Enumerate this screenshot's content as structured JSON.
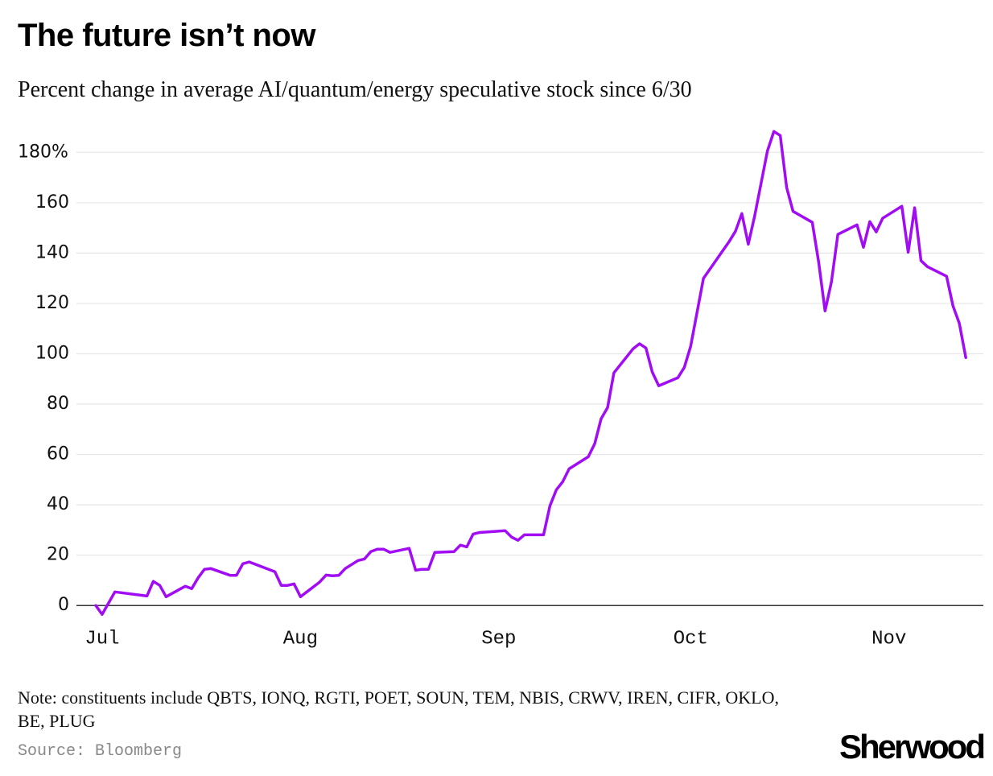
{
  "chart_data": {
    "type": "line",
    "title": "The future isn’t now",
    "subtitle": "Percent change in average AI/quantum/energy speculative stock since 6/30",
    "note": "Note: constituents include QBTS, IONQ, RGTI, POET, SOUN, TEM, NBIS, CRWV, IREN, CIFR, OKLO, BE, PLUG",
    "source": "Source: Bloomberg",
    "brand": "Sherwood",
    "x": [
      0,
      1,
      3,
      8,
      9,
      10,
      11,
      14,
      15,
      16,
      17,
      18,
      21,
      22,
      23,
      24,
      28,
      29,
      30,
      31,
      32,
      35,
      36,
      37,
      38,
      39,
      41,
      42,
      43,
      44,
      45,
      46,
      49,
      50,
      51,
      52,
      53,
      56,
      57,
      58,
      59,
      60,
      64,
      65,
      66,
      67,
      70,
      71,
      72,
      73,
      74,
      77,
      78,
      79,
      80,
      81,
      84,
      85,
      86,
      87,
      88,
      91,
      92,
      93,
      95,
      99,
      100,
      101,
      102,
      103,
      105,
      106,
      107,
      108,
      109,
      112,
      113,
      114,
      115,
      116,
      119,
      120,
      121,
      122,
      123,
      126,
      127,
      128,
      129,
      130,
      133,
      134,
      135,
      136
    ],
    "series": [
      {
        "color": "#a10cf5",
        "values": [
          0,
          -3.5,
          5.4,
          3.8,
          9.6,
          8,
          3.5,
          7.7,
          6.7,
          11,
          14.4,
          14.7,
          12,
          12,
          16.6,
          17.3,
          13.4,
          8,
          8,
          8.6,
          3.5,
          9.3,
          12.1,
          11.8,
          12,
          14.7,
          17.9,
          18.5,
          21.4,
          22.4,
          22.4,
          21.1,
          22.7,
          14,
          14.4,
          14.4,
          21.1,
          21.4,
          24,
          23.3,
          28.4,
          29,
          29.7,
          27.2,
          25.9,
          28.1,
          28.1,
          39.6,
          46,
          49.2,
          54.3,
          59.1,
          64.3,
          74.2,
          78.6,
          92.4,
          102,
          104,
          102.3,
          92.7,
          87.3,
          90.5,
          94.6,
          103,
          130,
          144.5,
          148.7,
          155.7,
          143.5,
          154.7,
          180.6,
          188.3,
          186.7,
          166,
          156.6,
          152.2,
          136.5,
          117,
          128.5,
          147.4,
          151.2,
          142.3,
          152.5,
          148.4,
          153.8,
          158.6,
          140.3,
          158,
          137,
          134.6,
          130.8,
          119,
          112,
          98.5
        ]
      }
    ],
    "xlim": [
      0,
      139
    ],
    "xticks": [
      {
        "value": 1,
        "label": "Jul"
      },
      {
        "value": 32,
        "label": "Aug"
      },
      {
        "value": 63,
        "label": "Sep"
      },
      {
        "value": 93,
        "label": "Oct"
      },
      {
        "value": 124,
        "label": "Nov"
      }
    ],
    "ylim": [
      -6,
      190
    ],
    "yticks": [
      0,
      20,
      40,
      60,
      80,
      100,
      120,
      140,
      160,
      {
        "value": 180,
        "label": "180%"
      }
    ],
    "grid": true
  }
}
